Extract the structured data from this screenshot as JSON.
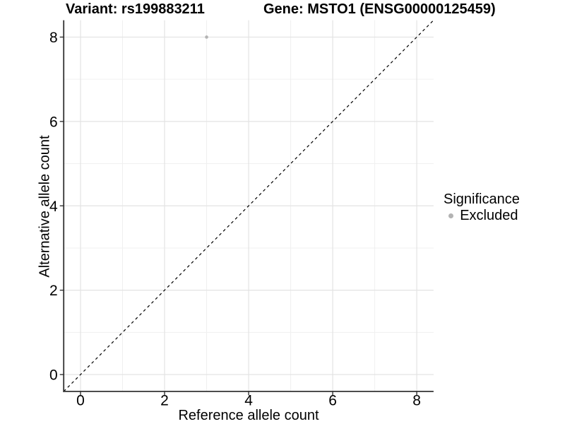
{
  "titles": {
    "variant": "Variant: rs199883211",
    "gene": "Gene: MSTO1 (ENSG00000125459)"
  },
  "axes": {
    "x_label": "Reference allele count",
    "y_label": "Alternative allele count"
  },
  "legend": {
    "title": "Significance",
    "items": [
      {
        "label": "Excluded",
        "color": "#b3b3b3"
      }
    ]
  },
  "colors": {
    "background": "#ffffff",
    "grid_major": "#e3e3e3",
    "grid_minor": "#f0f0f0",
    "axis_line": "#333333",
    "tick_mark": "#333333",
    "text": "#000000",
    "point": "#b3b3b3",
    "reference_line": "#000000"
  },
  "chart_data": {
    "type": "scatter",
    "title": "Variant: rs199883211    Gene: MSTO1 (ENSG00000125459)",
    "xlabel": "Reference allele count",
    "ylabel": "Alternative allele count",
    "xlim": [
      -0.4,
      8.4
    ],
    "ylim": [
      -0.4,
      8.4
    ],
    "xticks": [
      0,
      2,
      4,
      6,
      8
    ],
    "yticks": [
      0,
      2,
      4,
      6,
      8
    ],
    "minor_xticks": [
      1,
      3,
      5,
      7
    ],
    "minor_yticks": [
      1,
      3,
      5,
      7
    ],
    "grid": "on",
    "legend_position": "right",
    "legend_title": "Significance",
    "series": [
      {
        "name": "Excluded",
        "color": "#b3b3b3",
        "points": [
          [
            3,
            8
          ]
        ]
      }
    ],
    "reference_line": {
      "kind": "identity",
      "from": [
        -0.4,
        -0.4
      ],
      "to": [
        8.4,
        8.4
      ],
      "style": "dashed",
      "color": "#000000"
    }
  }
}
